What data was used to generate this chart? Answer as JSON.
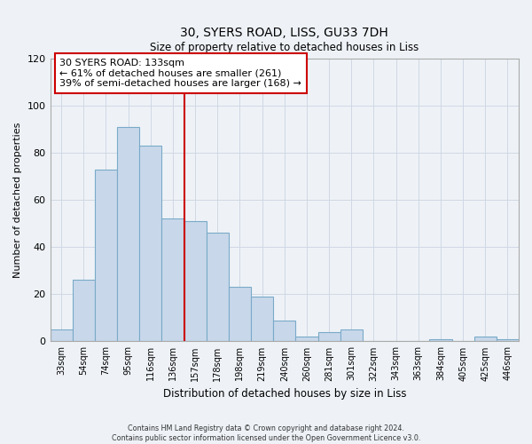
{
  "title": "30, SYERS ROAD, LISS, GU33 7DH",
  "subtitle": "Size of property relative to detached houses in Liss",
  "xlabel": "Distribution of detached houses by size in Liss",
  "ylabel": "Number of detached properties",
  "bar_labels": [
    "33sqm",
    "54sqm",
    "74sqm",
    "95sqm",
    "116sqm",
    "136sqm",
    "157sqm",
    "178sqm",
    "198sqm",
    "219sqm",
    "240sqm",
    "260sqm",
    "281sqm",
    "301sqm",
    "322sqm",
    "343sqm",
    "363sqm",
    "384sqm",
    "405sqm",
    "425sqm",
    "446sqm"
  ],
  "bar_values": [
    5,
    26,
    73,
    91,
    83,
    52,
    51,
    46,
    23,
    19,
    9,
    2,
    4,
    5,
    0,
    0,
    0,
    1,
    0,
    2,
    1
  ],
  "bar_color": "#c8d8ea",
  "bar_edge_color": "#7aaac8",
  "vline_x_index": 5,
  "vline_color": "#cc0000",
  "annotation_title": "30 SYERS ROAD: 133sqm",
  "annotation_line1": "← 61% of detached houses are smaller (261)",
  "annotation_line2": "39% of semi-detached houses are larger (168) →",
  "annotation_box_color": "#ffffff",
  "annotation_box_edge": "#cc0000",
  "ylim": [
    0,
    120
  ],
  "yticks": [
    0,
    20,
    40,
    60,
    80,
    100,
    120
  ],
  "footer1": "Contains HM Land Registry data © Crown copyright and database right 2024.",
  "footer2": "Contains public sector information licensed under the Open Government Licence v3.0.",
  "bg_color": "#eef2f7",
  "plot_bg_color": "#eef2f7",
  "grid_color": "#d0d8e4"
}
